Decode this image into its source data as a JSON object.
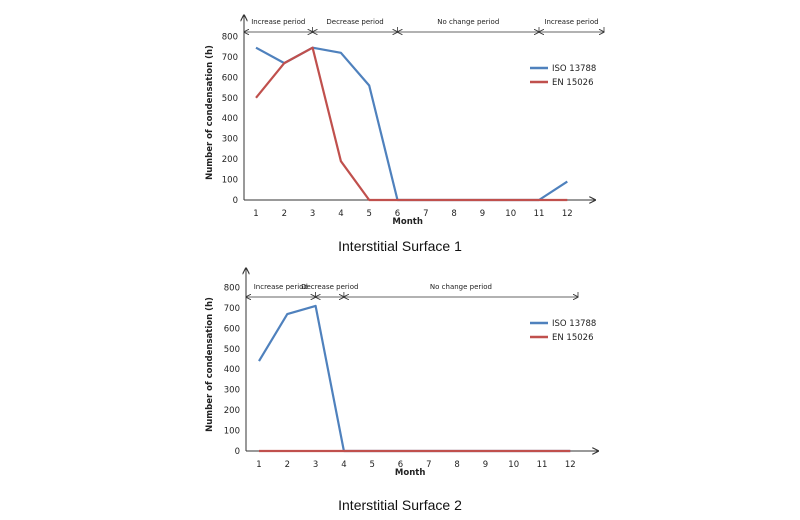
{
  "chart_data": [
    {
      "type": "line",
      "title": "Interstitial Surface 1",
      "xlabel": "Month",
      "ylabel": "Number of condensation (h)",
      "categories": [
        "1",
        "2",
        "3",
        "4",
        "5",
        "6",
        "7",
        "8",
        "9",
        "10",
        "11",
        "12"
      ],
      "y_ticks": [
        "0",
        "100",
        "200",
        "300",
        "400",
        "500",
        "600",
        "700",
        "800"
      ],
      "ylim": [
        0,
        800
      ],
      "legend_position": "right",
      "series": [
        {
          "name": "ISO 13788",
          "color": "#4f81bd",
          "values": [
            745,
            670,
            745,
            720,
            560,
            0,
            0,
            0,
            0,
            0,
            0,
            90
          ]
        },
        {
          "name": "EN 15026",
          "color": "#c0504d",
          "values": [
            500,
            670,
            745,
            190,
            0,
            0,
            0,
            0,
            0,
            0,
            0,
            0
          ]
        }
      ],
      "periods": [
        {
          "label": "Increase period",
          "from": 1,
          "to": 3
        },
        {
          "label": "Decrease period",
          "from": 3,
          "to": 6
        },
        {
          "label": "No change period",
          "from": 6,
          "to": 11
        },
        {
          "label": "Increase period",
          "from": 11,
          "to": 12
        }
      ]
    },
    {
      "type": "line",
      "title": "Interstitial Surface 2",
      "xlabel": "Month",
      "ylabel": "Number of condensation (h)",
      "categories": [
        "1",
        "2",
        "3",
        "4",
        "5",
        "6",
        "7",
        "8",
        "9",
        "10",
        "11",
        "12"
      ],
      "y_ticks": [
        "0",
        "100",
        "200",
        "300",
        "400",
        "500",
        "600",
        "700",
        "800"
      ],
      "ylim": [
        0,
        800
      ],
      "legend_position": "right",
      "series": [
        {
          "name": "ISO 13788",
          "color": "#4f81bd",
          "values": [
            440,
            670,
            710,
            0,
            0,
            0,
            0,
            0,
            0,
            0,
            0,
            0
          ]
        },
        {
          "name": "EN 15026",
          "color": "#c0504d",
          "values": [
            0,
            0,
            0,
            0,
            0,
            0,
            0,
            0,
            0,
            0,
            0,
            0
          ]
        }
      ],
      "periods": [
        {
          "label": "Increase period",
          "from": 1,
          "to": 3
        },
        {
          "label": "Decrease period",
          "from": 3,
          "to": 4
        },
        {
          "label": "No change period",
          "from": 4,
          "to": 12
        }
      ]
    }
  ]
}
